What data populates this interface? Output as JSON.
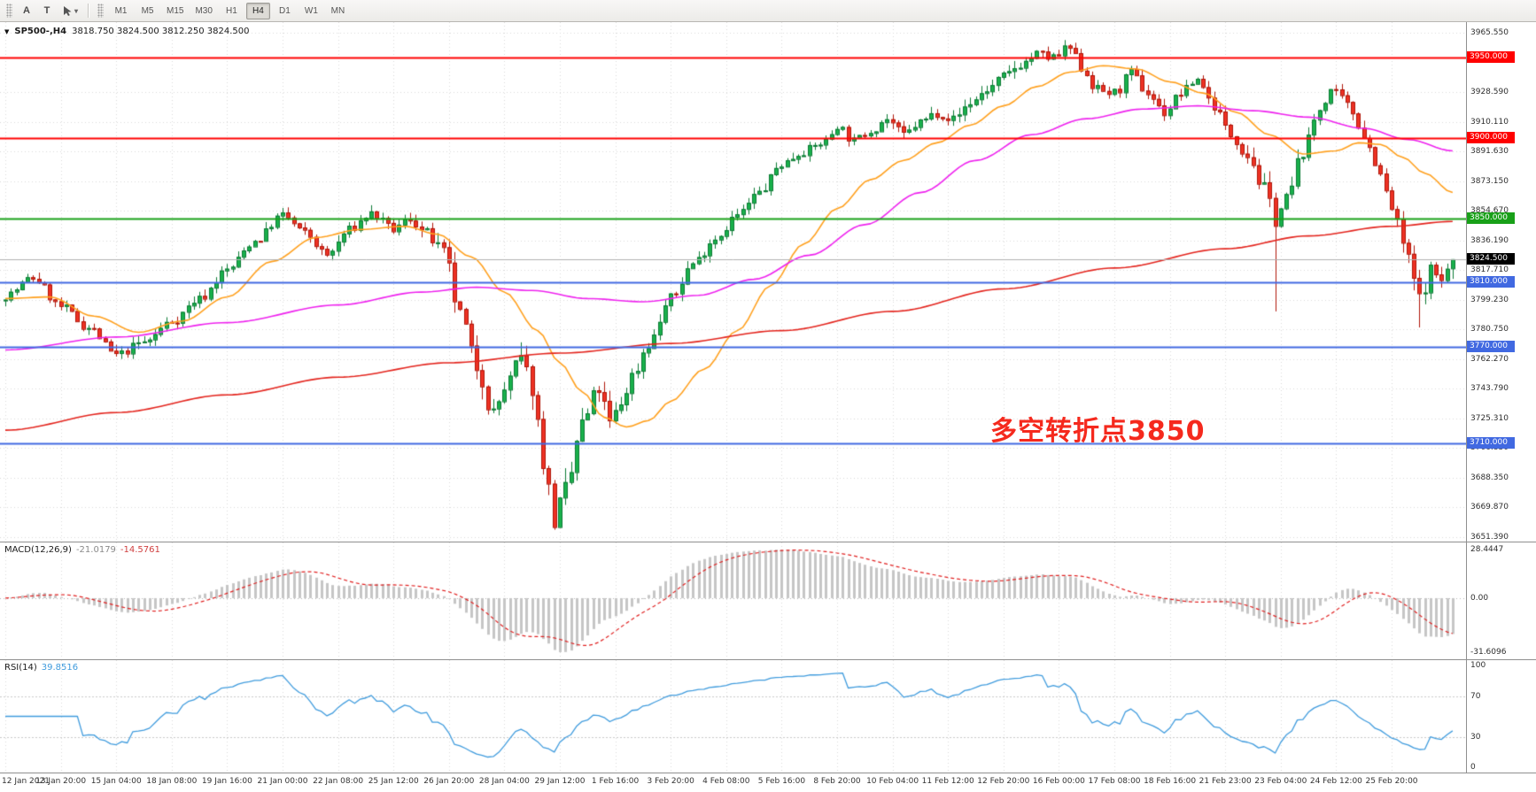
{
  "toolbar": {
    "buttons": [
      {
        "label": "A"
      },
      {
        "label": "T"
      }
    ],
    "caret_icon": "▾",
    "timeframes": [
      "M1",
      "M5",
      "M15",
      "M30",
      "H1",
      "H4",
      "D1",
      "W1",
      "MN"
    ],
    "active_timeframe": "H4"
  },
  "chart": {
    "collapse_icon": "▼",
    "symbol_period": "SP500-,H4",
    "ohlc": "3818.750 3824.500 3812.250 3824.500",
    "annotation": {
      "text": "多空转折点3850",
      "color": "#F5291D"
    },
    "bid": {
      "price": 3824.5,
      "label": "3824.500",
      "badge_color": "#000000",
      "text_color": "#FFFFFF"
    },
    "levels": [
      {
        "price": 3950,
        "label": "3950.000",
        "color": "#FF0000"
      },
      {
        "price": 3900,
        "label": "3900.000",
        "color": "#FF0000"
      },
      {
        "price": 3850,
        "label": "3850.000",
        "color": "#18A018"
      },
      {
        "price": 3810,
        "label": "3810.000",
        "color": "#4169E1"
      },
      {
        "price": 3770,
        "label": "3770.000",
        "color": "#4169E1"
      },
      {
        "price": 3710,
        "label": "3710.000",
        "color": "#4169E1"
      }
    ],
    "scale_ticks": [
      "3965.550",
      "3928.590",
      "3910.110",
      "3891.630",
      "3873.150",
      "3854.670",
      "3836.190",
      "3817.710",
      "3799.230",
      "3780.750",
      "3762.270",
      "3743.790",
      "3725.310",
      "3706.830",
      "3688.350",
      "3669.870",
      "3651.390"
    ],
    "scale_top_price": 3965.55,
    "scale_bottom_price": 3651.39
  },
  "macd": {
    "name": "MACD(12,26,9)",
    "main_value": "-21.0179",
    "signal_value": "-14.5761",
    "ticks": [
      "28.4447",
      "0.00",
      "-31.6096"
    ],
    "range_max": 28.4447,
    "range_min": -31.6096
  },
  "rsi": {
    "name": "RSI(14)",
    "value": "39.8516",
    "ticks": [
      "100",
      "70",
      "30",
      "0"
    ],
    "levels": [
      70,
      30
    ]
  },
  "time_axis": [
    "12 Jan 2021",
    "13 Jan 20:00",
    "15 Jan 04:00",
    "18 Jan 08:00",
    "19 Jan 16:00",
    "21 Jan 00:00",
    "22 Jan 08:00",
    "25 Jan 12:00",
    "26 Jan 20:00",
    "28 Jan 04:00",
    "29 Jan 12:00",
    "1 Feb 16:00",
    "3 Feb 20:00",
    "4 Feb 08:00",
    "5 Feb 16:00",
    "8 Feb 20:00",
    "10 Feb 04:00",
    "11 Feb 12:00",
    "12 Feb 20:00",
    "16 Feb 00:00",
    "17 Feb 08:00",
    "18 Feb 16:00",
    "21 Feb 23:00",
    "23 Feb 04:00",
    "24 Feb 12:00",
    "25 Feb 20:00"
  ],
  "colors": {
    "background": "#FFFFFF",
    "grid": "#D9D9D9",
    "candle_up": "#19B14C",
    "candle_up_border": "#0B7A33",
    "candle_down": "#EE3124",
    "candle_down_border": "#AF1508",
    "macd_histogram": "#C6C6C6",
    "macd_signal": "#E02020",
    "rsi_line": "#3F9BDD",
    "axis_text": "#3C3C3C",
    "panel_border": "#8F8F8F",
    "bid_line": "#B0B0B0"
  },
  "chart_data": {
    "type": "candlestick",
    "symbol": "SP500-",
    "period": "H4",
    "candle_count": 262,
    "price_axis": {
      "top": 3965.55,
      "bottom": 3651.39
    },
    "close_waypoints": [
      [
        0,
        3802
      ],
      [
        5,
        3813
      ],
      [
        10,
        3795
      ],
      [
        15,
        3782
      ],
      [
        20,
        3765
      ],
      [
        25,
        3773
      ],
      [
        30,
        3786
      ],
      [
        35,
        3800
      ],
      [
        40,
        3818
      ],
      [
        45,
        3836
      ],
      [
        50,
        3852
      ],
      [
        54,
        3841
      ],
      [
        58,
        3827
      ],
      [
        62,
        3843
      ],
      [
        66,
        3853
      ],
      [
        70,
        3843
      ],
      [
        73,
        3850
      ],
      [
        76,
        3840
      ],
      [
        79,
        3828
      ],
      [
        82,
        3790
      ],
      [
        85,
        3758
      ],
      [
        88,
        3728
      ],
      [
        90,
        3744
      ],
      [
        93,
        3762
      ],
      [
        95,
        3745
      ],
      [
        97,
        3700
      ],
      [
        99,
        3662
      ],
      [
        101,
        3680
      ],
      [
        104,
        3722
      ],
      [
        107,
        3744
      ],
      [
        109,
        3722
      ],
      [
        111,
        3735
      ],
      [
        113,
        3752
      ],
      [
        116,
        3772
      ],
      [
        120,
        3800
      ],
      [
        124,
        3822
      ],
      [
        128,
        3838
      ],
      [
        132,
        3852
      ],
      [
        136,
        3866
      ],
      [
        140,
        3884
      ],
      [
        144,
        3892
      ],
      [
        148,
        3898
      ],
      [
        150,
        3908
      ],
      [
        153,
        3898
      ],
      [
        156,
        3905
      ],
      [
        159,
        3912
      ],
      [
        162,
        3902
      ],
      [
        165,
        3910
      ],
      [
        168,
        3916
      ],
      [
        171,
        3912
      ],
      [
        174,
        3922
      ],
      [
        177,
        3930
      ],
      [
        180,
        3938
      ],
      [
        183,
        3946
      ],
      [
        186,
        3952
      ],
      [
        189,
        3950
      ],
      [
        192,
        3956
      ],
      [
        194,
        3944
      ],
      [
        197,
        3930
      ],
      [
        200,
        3928
      ],
      [
        203,
        3940
      ],
      [
        206,
        3928
      ],
      [
        209,
        3916
      ],
      [
        212,
        3928
      ],
      [
        215,
        3937
      ],
      [
        218,
        3920
      ],
      [
        221,
        3902
      ],
      [
        224,
        3890
      ],
      [
        227,
        3868
      ],
      [
        229,
        3850
      ],
      [
        231,
        3862
      ],
      [
        234,
        3892
      ],
      [
        237,
        3918
      ],
      [
        239,
        3930
      ],
      [
        241,
        3924
      ],
      [
        243,
        3916
      ],
      [
        245,
        3902
      ],
      [
        247,
        3886
      ],
      [
        249,
        3866
      ],
      [
        251,
        3846
      ],
      [
        253,
        3824
      ],
      [
        255,
        3800
      ],
      [
        257,
        3818
      ],
      [
        259,
        3812
      ],
      [
        261,
        3824.5
      ]
    ],
    "volatility_waypoints": [
      [
        0,
        5
      ],
      [
        40,
        5
      ],
      [
        70,
        5
      ],
      [
        80,
        9
      ],
      [
        90,
        11
      ],
      [
        99,
        12
      ],
      [
        110,
        9
      ],
      [
        120,
        6
      ],
      [
        150,
        5
      ],
      [
        185,
        6
      ],
      [
        195,
        6
      ],
      [
        220,
        5
      ],
      [
        228,
        9
      ],
      [
        238,
        6
      ],
      [
        248,
        7
      ],
      [
        255,
        10
      ],
      [
        261,
        5
      ]
    ],
    "forced_wicks": [
      {
        "index": 99,
        "type": "low",
        "price": 3656.0
      },
      {
        "index": 191,
        "type": "high",
        "price": 3961.0
      },
      {
        "index": 229,
        "type": "low",
        "price": 3792.0
      },
      {
        "index": 255,
        "type": "low",
        "price": 3782.0
      }
    ],
    "last_candle": {
      "open": 3818.75,
      "high": 3824.5,
      "low": 3812.25,
      "close": 3824.5
    },
    "ma_lines": [
      {
        "name": "fast-ma",
        "color": "#FFA01E",
        "points": [
          [
            0,
            3800
          ],
          [
            8,
            3801
          ],
          [
            16,
            3789
          ],
          [
            24,
            3779
          ],
          [
            32,
            3786
          ],
          [
            40,
            3801
          ],
          [
            48,
            3823
          ],
          [
            56,
            3838
          ],
          [
            64,
            3843
          ],
          [
            72,
            3845
          ],
          [
            78,
            3840
          ],
          [
            84,
            3826
          ],
          [
            90,
            3804
          ],
          [
            96,
            3780
          ],
          [
            100,
            3760
          ],
          [
            104,
            3742
          ],
          [
            108,
            3726
          ],
          [
            112,
            3720
          ],
          [
            116,
            3724
          ],
          [
            120,
            3736
          ],
          [
            126,
            3756
          ],
          [
            132,
            3780
          ],
          [
            138,
            3808
          ],
          [
            144,
            3834
          ],
          [
            150,
            3856
          ],
          [
            156,
            3874
          ],
          [
            162,
            3886
          ],
          [
            168,
            3897
          ],
          [
            174,
            3908
          ],
          [
            180,
            3920
          ],
          [
            186,
            3932
          ],
          [
            192,
            3941
          ],
          [
            198,
            3945
          ],
          [
            204,
            3943
          ],
          [
            210,
            3935
          ],
          [
            216,
            3928
          ],
          [
            222,
            3916
          ],
          [
            228,
            3902
          ],
          [
            234,
            3890
          ],
          [
            240,
            3892
          ],
          [
            244,
            3897
          ],
          [
            248,
            3896
          ],
          [
            252,
            3888
          ],
          [
            256,
            3878
          ],
          [
            261,
            3866
          ]
        ]
      },
      {
        "name": "mid-ma",
        "color": "#EE22EE",
        "points": [
          [
            0,
            3768
          ],
          [
            20,
            3776
          ],
          [
            40,
            3785
          ],
          [
            60,
            3796
          ],
          [
            75,
            3804
          ],
          [
            85,
            3807
          ],
          [
            95,
            3805
          ],
          [
            105,
            3800
          ],
          [
            115,
            3798
          ],
          [
            125,
            3802
          ],
          [
            135,
            3812
          ],
          [
            145,
            3827
          ],
          [
            155,
            3846
          ],
          [
            165,
            3866
          ],
          [
            175,
            3886
          ],
          [
            185,
            3902
          ],
          [
            195,
            3912
          ],
          [
            205,
            3918
          ],
          [
            215,
            3920
          ],
          [
            225,
            3917
          ],
          [
            235,
            3913
          ],
          [
            245,
            3906
          ],
          [
            253,
            3899
          ],
          [
            261,
            3892
          ]
        ]
      },
      {
        "name": "slow-ma",
        "color": "#E3241D",
        "points": [
          [
            0,
            3718
          ],
          [
            20,
            3729
          ],
          [
            40,
            3740
          ],
          [
            60,
            3751
          ],
          [
            80,
            3760
          ],
          [
            100,
            3766
          ],
          [
            120,
            3772
          ],
          [
            140,
            3780
          ],
          [
            160,
            3792
          ],
          [
            180,
            3806
          ],
          [
            200,
            3819
          ],
          [
            220,
            3831
          ],
          [
            235,
            3839
          ],
          [
            250,
            3845
          ],
          [
            261,
            3848
          ]
        ]
      }
    ],
    "indicators": [
      {
        "name": "MACD",
        "params": [
          12,
          26,
          9
        ]
      },
      {
        "name": "RSI",
        "params": [
          14
        ]
      }
    ]
  }
}
